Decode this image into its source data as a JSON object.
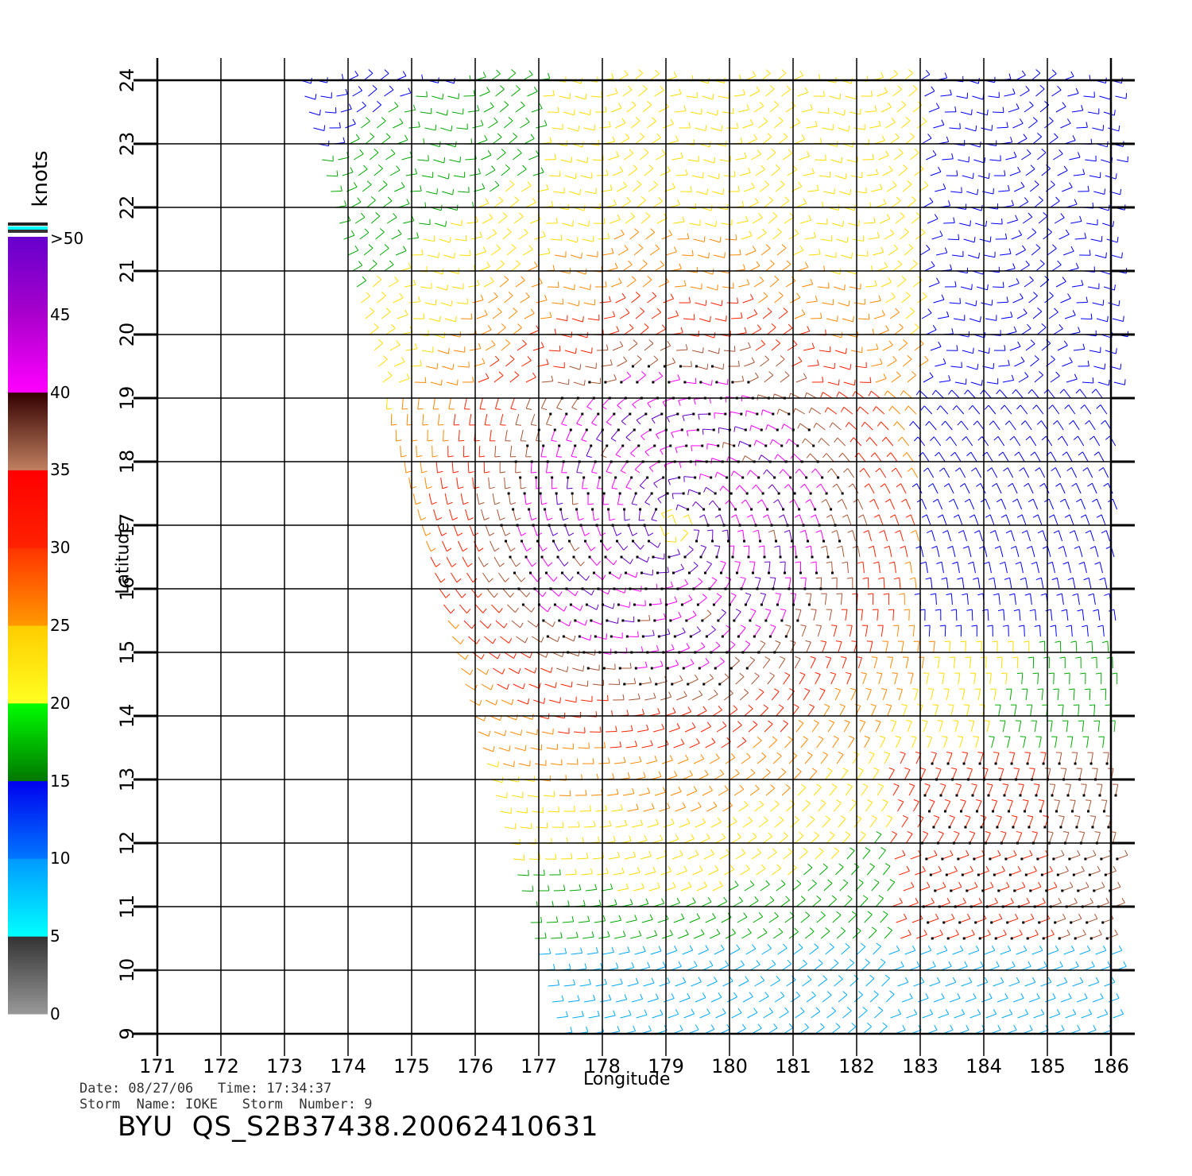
{
  "chart_data": {
    "type": "scatter",
    "subtype": "wind-barb",
    "xlabel": "Longitude",
    "ylabel": "Latitude",
    "xlim": [
      171,
      186
    ],
    "ylim": [
      9,
      24
    ],
    "x_ticks": [
      "171",
      "172",
      "173",
      "174",
      "175",
      "176",
      "177",
      "178",
      "179",
      "180",
      "181",
      "182",
      "183",
      "184",
      "185",
      "186"
    ],
    "y_ticks": [
      "9",
      "10",
      "11",
      "12",
      "13",
      "14",
      "15",
      "16",
      "17",
      "18",
      "19",
      "20",
      "21",
      "22",
      "23",
      "24"
    ],
    "grid": true,
    "colorbar": {
      "title": "knots",
      "labels": [
        "0",
        "5",
        "10",
        "15",
        "20",
        "25",
        "30",
        "35",
        "40",
        "45",
        ">50"
      ],
      "colors": [
        "#888888",
        "#333333",
        "#00ffff",
        "#0088ff",
        "#0000ff",
        "#006600",
        "#00ff00",
        "#ffff00",
        "#ffcc00",
        "#ff8800",
        "#ff3300",
        "#ff0000",
        "#c08060",
        "#442222",
        "#ff00ff",
        "#aa00cc",
        "#6600cc"
      ]
    },
    "swath_edge": [
      [
        173.2,
        24
      ],
      [
        177.3,
        9
      ]
    ],
    "storm_center": [
      179.1,
      17.0
    ],
    "series": [
      {
        "speed_range": "0-5",
        "color": "#444444"
      },
      {
        "speed_range": "5-10",
        "color": "#00aaff"
      },
      {
        "speed_range": "10-15",
        "color": "#0000ff"
      },
      {
        "speed_range": "15-20",
        "color": "#00aa00"
      },
      {
        "speed_range": "20-25",
        "color": "#ffdd00"
      },
      {
        "speed_range": "25-30",
        "color": "#ff8800"
      },
      {
        "speed_range": "30-35",
        "color": "#ff2200"
      },
      {
        "speed_range": "35-40",
        "color": "#aa5533"
      },
      {
        "speed_range": "40-45",
        "color": "#ff00ff"
      },
      {
        "speed_range": ">50",
        "color": "#6600cc"
      }
    ]
  },
  "footer": {
    "date_line": "Date: 08/27/06   Time: 17:34:37",
    "storm_line": "Storm  Name: IOKE   Storm  Number: 9",
    "title": "BYU  QS_S2B37438.20062410631"
  }
}
